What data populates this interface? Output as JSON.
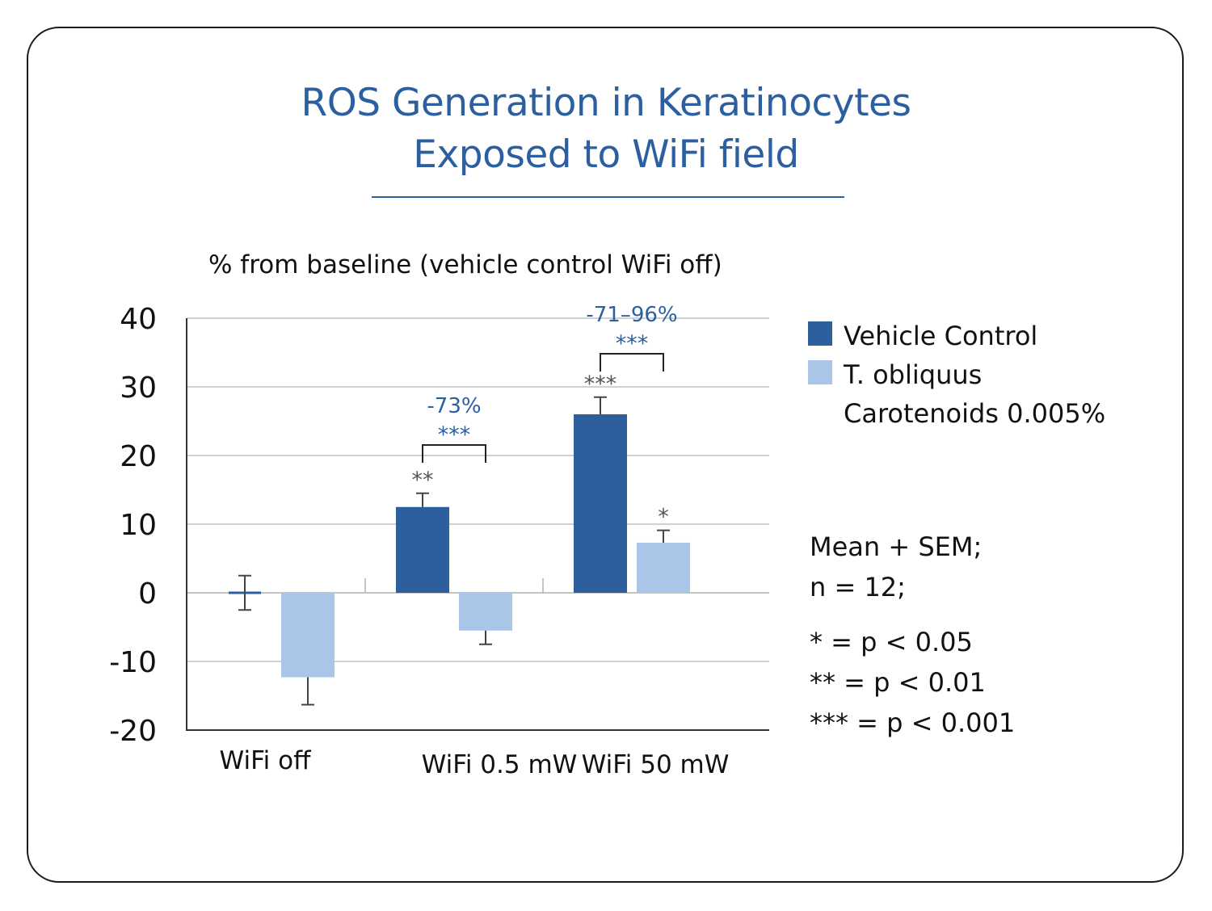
{
  "title": [
    "ROS Generation in Keratinocytes",
    "Exposed to WiFi field"
  ],
  "colors": {
    "accent": "#2c5fa0",
    "vehicle": "#2d5f9e",
    "treatment": "#a9c6e8",
    "grid": "#d0d0d0",
    "significance_gray": "#555555"
  },
  "chart_data": {
    "type": "bar",
    "ylabel": "% from baseline (vehicle control WiFi off)",
    "ylim": [
      -20,
      40
    ],
    "yticks": [
      40,
      30,
      20,
      10,
      0,
      -10,
      -20
    ],
    "ytick_labels": [
      "40",
      "30",
      "20",
      "10",
      "0",
      "-10",
      "-20"
    ],
    "categories": [
      "WiFi off",
      "WiFi 0.5 mW",
      "WiFi 50 mW"
    ],
    "grid": true,
    "series": [
      {
        "name": "Vehicle Control",
        "values": [
          0,
          12.5,
          26
        ],
        "error": [
          2.5,
          2,
          2.5
        ],
        "significance": [
          "",
          "**",
          "***"
        ]
      },
      {
        "name": "T. obliquus\nCarotenoids 0.005%",
        "values": [
          -12.3,
          -5.5,
          7.3
        ],
        "error": [
          4,
          2,
          1.8
        ],
        "significance": [
          "",
          "",
          "*"
        ]
      }
    ],
    "comparisons": [
      {
        "category": "WiFi 0.5 mW",
        "stars": "***",
        "label": "-73%"
      },
      {
        "category": "WiFi 50 mW",
        "stars": "***",
        "label": "-71–96%"
      }
    ],
    "legend_position": "right"
  },
  "notes": {
    "line1": "Mean + SEM;",
    "line2": "n = 12;",
    "p1": "* = p < 0.05",
    "p2": "** = p < 0.01",
    "p3": "*** = p < 0.001"
  }
}
